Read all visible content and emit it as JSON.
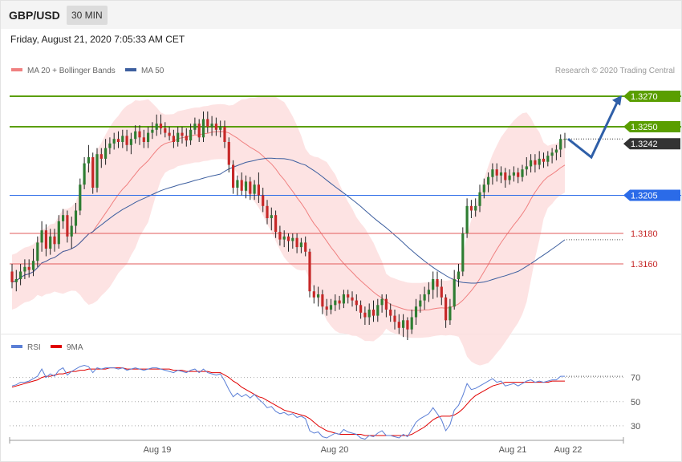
{
  "header": {
    "symbol": "GBP/USD",
    "timeframe": "30 MIN"
  },
  "timestamp": "Friday, August 21, 2020 7:05:33 AM CET",
  "legend": {
    "ma20": "MA 20 + Bollinger Bands",
    "ma50": "MA 50",
    "credit": "Research © 2020 Trading Central"
  },
  "rsi_legend": {
    "rsi": "RSI",
    "ma9": "9MA"
  },
  "colors": {
    "bull": "#2e7d32",
    "bear": "#c62828",
    "bb_fill": "#fddede",
    "ma20": "#f08080",
    "ma50": "#3d5f9f",
    "resistance": "#5a9e00",
    "pivot": "#2b6be8",
    "support": "#e25b5b",
    "forecast": "#2f5fa8",
    "current": "#333333",
    "rsi": "#5b7fd6",
    "rsi_ma": "#e00000"
  },
  "chart_data": [
    {
      "type": "candlestick",
      "title": "GBP/USD 30 MIN",
      "ylim": [
        1.312,
        1.328
      ],
      "x_labels": [
        "Aug 19",
        "Aug 20",
        "Aug 21",
        "Aug 22"
      ],
      "current_price": "1.3242",
      "levels": [
        {
          "value": 1.327,
          "label": "1.3270",
          "type": "resistance"
        },
        {
          "value": 1.325,
          "label": "1.3250",
          "type": "resistance"
        },
        {
          "value": 1.3205,
          "label": "1.3205",
          "type": "pivot"
        },
        {
          "value": 1.318,
          "label": "1.3180",
          "type": "support"
        },
        {
          "value": 1.316,
          "label": "1.3160",
          "type": "support"
        }
      ],
      "forecast_path": [
        1.3242,
        1.323,
        1.3268
      ],
      "candles": [
        [
          1.3155,
          1.3148,
          1.316,
          1.3144
        ],
        [
          1.3148,
          1.315,
          1.3156,
          1.3142
        ],
        [
          1.315,
          1.3155,
          1.316,
          1.3146
        ],
        [
          1.3155,
          1.3158,
          1.3163,
          1.315
        ],
        [
          1.3158,
          1.3156,
          1.3163,
          1.3151
        ],
        [
          1.3156,
          1.3162,
          1.317,
          1.3152
        ],
        [
          1.3162,
          1.3174,
          1.3178,
          1.3158
        ],
        [
          1.3174,
          1.3182,
          1.3188,
          1.3168
        ],
        [
          1.3182,
          1.317,
          1.3186,
          1.3165
        ],
        [
          1.317,
          1.3178,
          1.3183,
          1.3166
        ],
        [
          1.3178,
          1.3173,
          1.3183,
          1.3168
        ],
        [
          1.3173,
          1.3188,
          1.3192,
          1.317
        ],
        [
          1.3188,
          1.3192,
          1.3196,
          1.3183
        ],
        [
          1.3192,
          1.3178,
          1.3195,
          1.3174
        ],
        [
          1.3178,
          1.3185,
          1.3191,
          1.317
        ],
        [
          1.3185,
          1.3195,
          1.32,
          1.318
        ],
        [
          1.3195,
          1.3212,
          1.3216,
          1.3192
        ],
        [
          1.3212,
          1.3226,
          1.323,
          1.3209
        ],
        [
          1.3226,
          1.323,
          1.3238,
          1.322
        ],
        [
          1.323,
          1.321,
          1.3233,
          1.3206
        ],
        [
          1.321,
          1.3232,
          1.3236,
          1.3207
        ],
        [
          1.3232,
          1.3229,
          1.3236,
          1.3223
        ],
        [
          1.3229,
          1.3236,
          1.3242,
          1.3225
        ],
        [
          1.3236,
          1.3239,
          1.3243,
          1.3232
        ],
        [
          1.3239,
          1.3242,
          1.3246,
          1.3235
        ],
        [
          1.3242,
          1.324,
          1.3247,
          1.3236
        ],
        [
          1.324,
          1.3244,
          1.3248,
          1.3236
        ],
        [
          1.3244,
          1.3238,
          1.3248,
          1.3234
        ],
        [
          1.3238,
          1.3242,
          1.3246,
          1.3232
        ],
        [
          1.3242,
          1.3247,
          1.3251,
          1.3239
        ],
        [
          1.3247,
          1.3243,
          1.3251,
          1.3238
        ],
        [
          1.3243,
          1.324,
          1.3248,
          1.3236
        ],
        [
          1.324,
          1.3246,
          1.325,
          1.3236
        ],
        [
          1.3246,
          1.3248,
          1.3253,
          1.3242
        ],
        [
          1.3248,
          1.3252,
          1.3258,
          1.3244
        ],
        [
          1.3252,
          1.3249,
          1.3258,
          1.3245
        ],
        [
          1.3249,
          1.3246,
          1.3253,
          1.3243
        ],
        [
          1.3246,
          1.3244,
          1.325,
          1.3241
        ],
        [
          1.3244,
          1.324,
          1.3248,
          1.3236
        ],
        [
          1.324,
          1.3246,
          1.325,
          1.3237
        ],
        [
          1.3246,
          1.3244,
          1.325,
          1.3239
        ],
        [
          1.3244,
          1.3241,
          1.3249,
          1.3237
        ],
        [
          1.3241,
          1.3248,
          1.3252,
          1.3238
        ],
        [
          1.3248,
          1.3252,
          1.3256,
          1.3245
        ],
        [
          1.3252,
          1.3243,
          1.3255,
          1.324
        ],
        [
          1.3243,
          1.3255,
          1.326,
          1.324
        ],
        [
          1.3255,
          1.325,
          1.326,
          1.3246
        ],
        [
          1.325,
          1.3252,
          1.3257,
          1.3244
        ],
        [
          1.3252,
          1.3248,
          1.3256,
          1.3244
        ],
        [
          1.3248,
          1.325,
          1.3254,
          1.3243
        ],
        [
          1.325,
          1.324,
          1.3254,
          1.3236
        ],
        [
          1.324,
          1.3225,
          1.3243,
          1.322
        ],
        [
          1.3225,
          1.321,
          1.3228,
          1.3206
        ],
        [
          1.321,
          1.3215,
          1.3218,
          1.3205
        ],
        [
          1.3215,
          1.3208,
          1.322,
          1.3205
        ],
        [
          1.3208,
          1.3214,
          1.3218,
          1.3203
        ],
        [
          1.3214,
          1.3206,
          1.3217,
          1.3202
        ],
        [
          1.3206,
          1.3212,
          1.3215,
          1.3202
        ],
        [
          1.3212,
          1.3205,
          1.322,
          1.32
        ],
        [
          1.3205,
          1.3198,
          1.321,
          1.3194
        ],
        [
          1.3198,
          1.319,
          1.3202,
          1.3186
        ],
        [
          1.319,
          1.3192,
          1.3197,
          1.3182
        ],
        [
          1.3192,
          1.3181,
          1.3195,
          1.3177
        ],
        [
          1.3181,
          1.3176,
          1.3185,
          1.3172
        ],
        [
          1.3176,
          1.3178,
          1.3182,
          1.3171
        ],
        [
          1.3178,
          1.3175,
          1.318,
          1.3168
        ],
        [
          1.3175,
          1.3177,
          1.318,
          1.317
        ],
        [
          1.3177,
          1.3171,
          1.318,
          1.3167
        ],
        [
          1.3171,
          1.3174,
          1.3177,
          1.3167
        ],
        [
          1.3174,
          1.3168,
          1.3178,
          1.3165
        ],
        [
          1.3168,
          1.3142,
          1.317,
          1.3138
        ],
        [
          1.3142,
          1.3138,
          1.3146,
          1.3134
        ],
        [
          1.3138,
          1.314,
          1.3145,
          1.3132
        ],
        [
          1.314,
          1.3132,
          1.3143,
          1.3127
        ],
        [
          1.3132,
          1.313,
          1.3137,
          1.3126
        ],
        [
          1.313,
          1.3133,
          1.3137,
          1.3127
        ],
        [
          1.3133,
          1.3136,
          1.314,
          1.3129
        ],
        [
          1.3136,
          1.3134,
          1.3139,
          1.313
        ],
        [
          1.3134,
          1.314,
          1.3143,
          1.3131
        ],
        [
          1.314,
          1.3138,
          1.3143,
          1.3134
        ],
        [
          1.3138,
          1.3136,
          1.3142,
          1.3132
        ],
        [
          1.3136,
          1.3133,
          1.314,
          1.3129
        ],
        [
          1.3133,
          1.3128,
          1.3136,
          1.3124
        ],
        [
          1.3128,
          1.3125,
          1.3132,
          1.312
        ],
        [
          1.3125,
          1.313,
          1.3134,
          1.312
        ],
        [
          1.313,
          1.3126,
          1.3136,
          1.3122
        ],
        [
          1.3126,
          1.3133,
          1.3137,
          1.3122
        ],
        [
          1.3133,
          1.3137,
          1.314,
          1.3128
        ],
        [
          1.3137,
          1.313,
          1.314,
          1.3125
        ],
        [
          1.313,
          1.3126,
          1.3134,
          1.3122
        ],
        [
          1.3126,
          1.3122,
          1.313,
          1.3117
        ],
        [
          1.3122,
          1.3118,
          1.3127,
          1.3114
        ],
        [
          1.3118,
          1.3123,
          1.3127,
          1.3112
        ],
        [
          1.3123,
          1.3117,
          1.3125,
          1.311
        ],
        [
          1.3117,
          1.3125,
          1.313,
          1.3114
        ],
        [
          1.3125,
          1.3132,
          1.3137,
          1.312
        ],
        [
          1.3132,
          1.3136,
          1.314,
          1.3128
        ],
        [
          1.3136,
          1.314,
          1.3145,
          1.313
        ],
        [
          1.314,
          1.3143,
          1.3148,
          1.3135
        ],
        [
          1.3143,
          1.315,
          1.3155,
          1.3137
        ],
        [
          1.315,
          1.3145,
          1.3155,
          1.3138
        ],
        [
          1.3145,
          1.3138,
          1.315,
          1.3133
        ],
        [
          1.3138,
          1.3123,
          1.314,
          1.3118
        ],
        [
          1.3123,
          1.3132,
          1.3137,
          1.312
        ],
        [
          1.3132,
          1.315,
          1.3156,
          1.313
        ],
        [
          1.315,
          1.3155,
          1.316,
          1.3145
        ],
        [
          1.3155,
          1.318,
          1.3184,
          1.3152
        ],
        [
          1.318,
          1.3198,
          1.3203,
          1.3177
        ],
        [
          1.3198,
          1.3195,
          1.3202,
          1.319
        ],
        [
          1.3195,
          1.3198,
          1.3203,
          1.3191
        ],
        [
          1.3198,
          1.3207,
          1.3212,
          1.3194
        ],
        [
          1.3207,
          1.3212,
          1.3216,
          1.3203
        ],
        [
          1.3212,
          1.3217,
          1.322,
          1.3207
        ],
        [
          1.3217,
          1.3222,
          1.3226,
          1.3212
        ],
        [
          1.3222,
          1.3218,
          1.3226,
          1.3214
        ],
        [
          1.3218,
          1.322,
          1.3224,
          1.3213
        ],
        [
          1.322,
          1.3215,
          1.3223,
          1.321
        ],
        [
          1.3215,
          1.3218,
          1.3222,
          1.3212
        ],
        [
          1.3218,
          1.322,
          1.3224,
          1.3214
        ],
        [
          1.322,
          1.3217,
          1.3223,
          1.3213
        ],
        [
          1.3217,
          1.3222,
          1.3225,
          1.3214
        ],
        [
          1.3222,
          1.3224,
          1.323,
          1.3218
        ],
        [
          1.3224,
          1.3228,
          1.3232,
          1.322
        ],
        [
          1.3228,
          1.3225,
          1.3232,
          1.322
        ],
        [
          1.3225,
          1.3229,
          1.3234,
          1.3222
        ],
        [
          1.3229,
          1.3227,
          1.3233,
          1.3223
        ],
        [
          1.3227,
          1.3231,
          1.3234,
          1.3224
        ],
        [
          1.3231,
          1.3233,
          1.3236,
          1.3226
        ],
        [
          1.3233,
          1.3235,
          1.3238,
          1.3228
        ],
        [
          1.3235,
          1.3242,
          1.3245,
          1.323
        ],
        [
          1.3242,
          1.3242,
          1.3246,
          1.3236
        ]
      ]
    },
    {
      "type": "line",
      "title": "RSI",
      "ylim": [
        20,
        85
      ],
      "yticks": [
        70,
        50,
        30
      ],
      "series": [
        {
          "name": "RSI",
          "values": [
            63,
            64,
            66,
            66,
            67,
            69,
            71,
            77,
            70,
            73,
            71,
            76,
            78,
            72,
            75,
            77,
            79,
            80,
            79,
            74,
            78,
            77,
            78,
            78,
            78,
            77,
            78,
            76,
            77,
            78,
            77,
            76,
            77,
            78,
            78,
            77,
            76,
            75,
            74,
            76,
            75,
            74,
            76,
            77,
            74,
            77,
            74,
            73,
            72,
            73,
            67,
            60,
            54,
            57,
            54,
            56,
            53,
            56,
            52,
            49,
            45,
            46,
            42,
            40,
            41,
            39,
            40,
            37,
            38,
            36,
            26,
            24,
            25,
            21,
            20,
            22,
            24,
            23,
            27,
            25,
            24,
            23,
            20,
            19,
            22,
            21,
            24,
            26,
            22,
            22,
            21,
            20,
            23,
            21,
            27,
            33,
            36,
            38,
            40,
            45,
            40,
            35,
            26,
            31,
            43,
            47,
            55,
            65,
            60,
            61,
            63,
            65,
            67,
            69,
            66,
            67,
            63,
            64,
            65,
            63,
            65,
            67,
            68,
            66,
            67,
            66,
            67,
            68,
            68,
            71,
            71
          ]
        },
        {
          "name": "9MA",
          "values": [
            62,
            63,
            64,
            65,
            66,
            67,
            68,
            70,
            71,
            71,
            72,
            73,
            73,
            74,
            75,
            75,
            76,
            76,
            77,
            77,
            77,
            77,
            77,
            78,
            78,
            78,
            78,
            77,
            77,
            77,
            77,
            77,
            77,
            77,
            77,
            77,
            77,
            77,
            76,
            76,
            76,
            75,
            75,
            75,
            75,
            75,
            75,
            74,
            74,
            74,
            72,
            70,
            67,
            65,
            62,
            60,
            58,
            56,
            54,
            53,
            51,
            49,
            47,
            45,
            43,
            42,
            41,
            40,
            39,
            38,
            36,
            33,
            30,
            28,
            26,
            25,
            24,
            23,
            23,
            23,
            23,
            23,
            23,
            22,
            22,
            22,
            22,
            22,
            22,
            22,
            22,
            22,
            22,
            22,
            23,
            25,
            27,
            29,
            32,
            35,
            37,
            38,
            38,
            38,
            39,
            41,
            44,
            48,
            52,
            55,
            57,
            59,
            61,
            63,
            64,
            65,
            66,
            66,
            66,
            66,
            66,
            66,
            66,
            66,
            66,
            66,
            66,
            67,
            67,
            67,
            67
          ]
        }
      ]
    }
  ]
}
